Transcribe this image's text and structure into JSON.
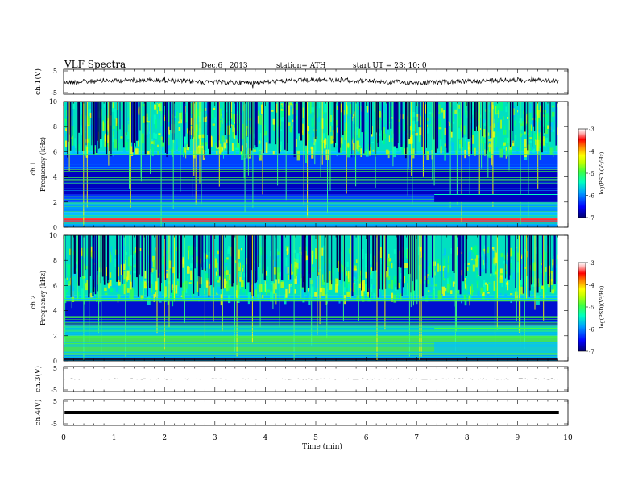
{
  "header": {
    "title": "VLF  Spectra",
    "date": "Dec.6  , 2013",
    "station": "station= ATH",
    "start_ut": "start  UT  =   23: 10: 0"
  },
  "chart_data": [
    {
      "type": "line",
      "name": "ch1-waveform",
      "ylabel": "ch.1(V)",
      "ylim": [
        -5,
        5
      ],
      "y_ticks": [
        "5",
        "-5"
      ],
      "xlim": [
        0,
        10
      ]
    },
    {
      "type": "heatmap",
      "name": "ch1-spectrogram",
      "ylabel_top": "ch.1",
      "ylabel": "Frequency  (kHz)",
      "ylim": [
        0,
        10
      ],
      "y_ticks": [
        "0",
        "2",
        "4",
        "6",
        "8",
        "10"
      ],
      "xlim": [
        0,
        9.8
      ],
      "colorbar": {
        "label": "log(PSD)(V²/Hz)",
        "range": [
          -7,
          -3
        ],
        "ticks": [
          "-3",
          "-4",
          "-5",
          "-6",
          "-7"
        ]
      }
    },
    {
      "type": "heatmap",
      "name": "ch2-spectrogram",
      "ylabel_top": "ch.2",
      "ylabel": "Frequency  (kHz)",
      "ylim": [
        0,
        10
      ],
      "y_ticks": [
        "0",
        "2",
        "4",
        "6",
        "8",
        "10"
      ],
      "xlim": [
        0,
        9.8
      ],
      "colorbar": {
        "label": "log(PSD)(V²/Hz)",
        "range": [
          -7,
          -3
        ],
        "ticks": [
          "-3",
          "-4",
          "-5",
          "-6",
          "-7"
        ]
      }
    },
    {
      "type": "line",
      "name": "ch3-waveform",
      "ylabel": "ch.3(V)",
      "ylim": [
        -5,
        5
      ],
      "y_ticks": [
        "5",
        "-5"
      ]
    },
    {
      "type": "line",
      "name": "ch4-waveform",
      "ylabel": "ch.4(V)",
      "ylim": [
        -5,
        5
      ],
      "y_ticks": [
        "5",
        "-5"
      ]
    }
  ],
  "x_axis": {
    "label": "Time  (min)",
    "ticks": [
      "0",
      "1",
      "2",
      "3",
      "4",
      "5",
      "6",
      "7",
      "8",
      "9",
      "10"
    ],
    "range": [
      0,
      10
    ]
  },
  "colors": {
    "colormap": [
      "#000070",
      "#0000ff",
      "#00a0ff",
      "#00ffc0",
      "#40ff40",
      "#c0ff00",
      "#ffff00",
      "#ff8000",
      "#ff0000",
      "#ffb0b0",
      "#ffffff"
    ],
    "line": "#000000"
  }
}
